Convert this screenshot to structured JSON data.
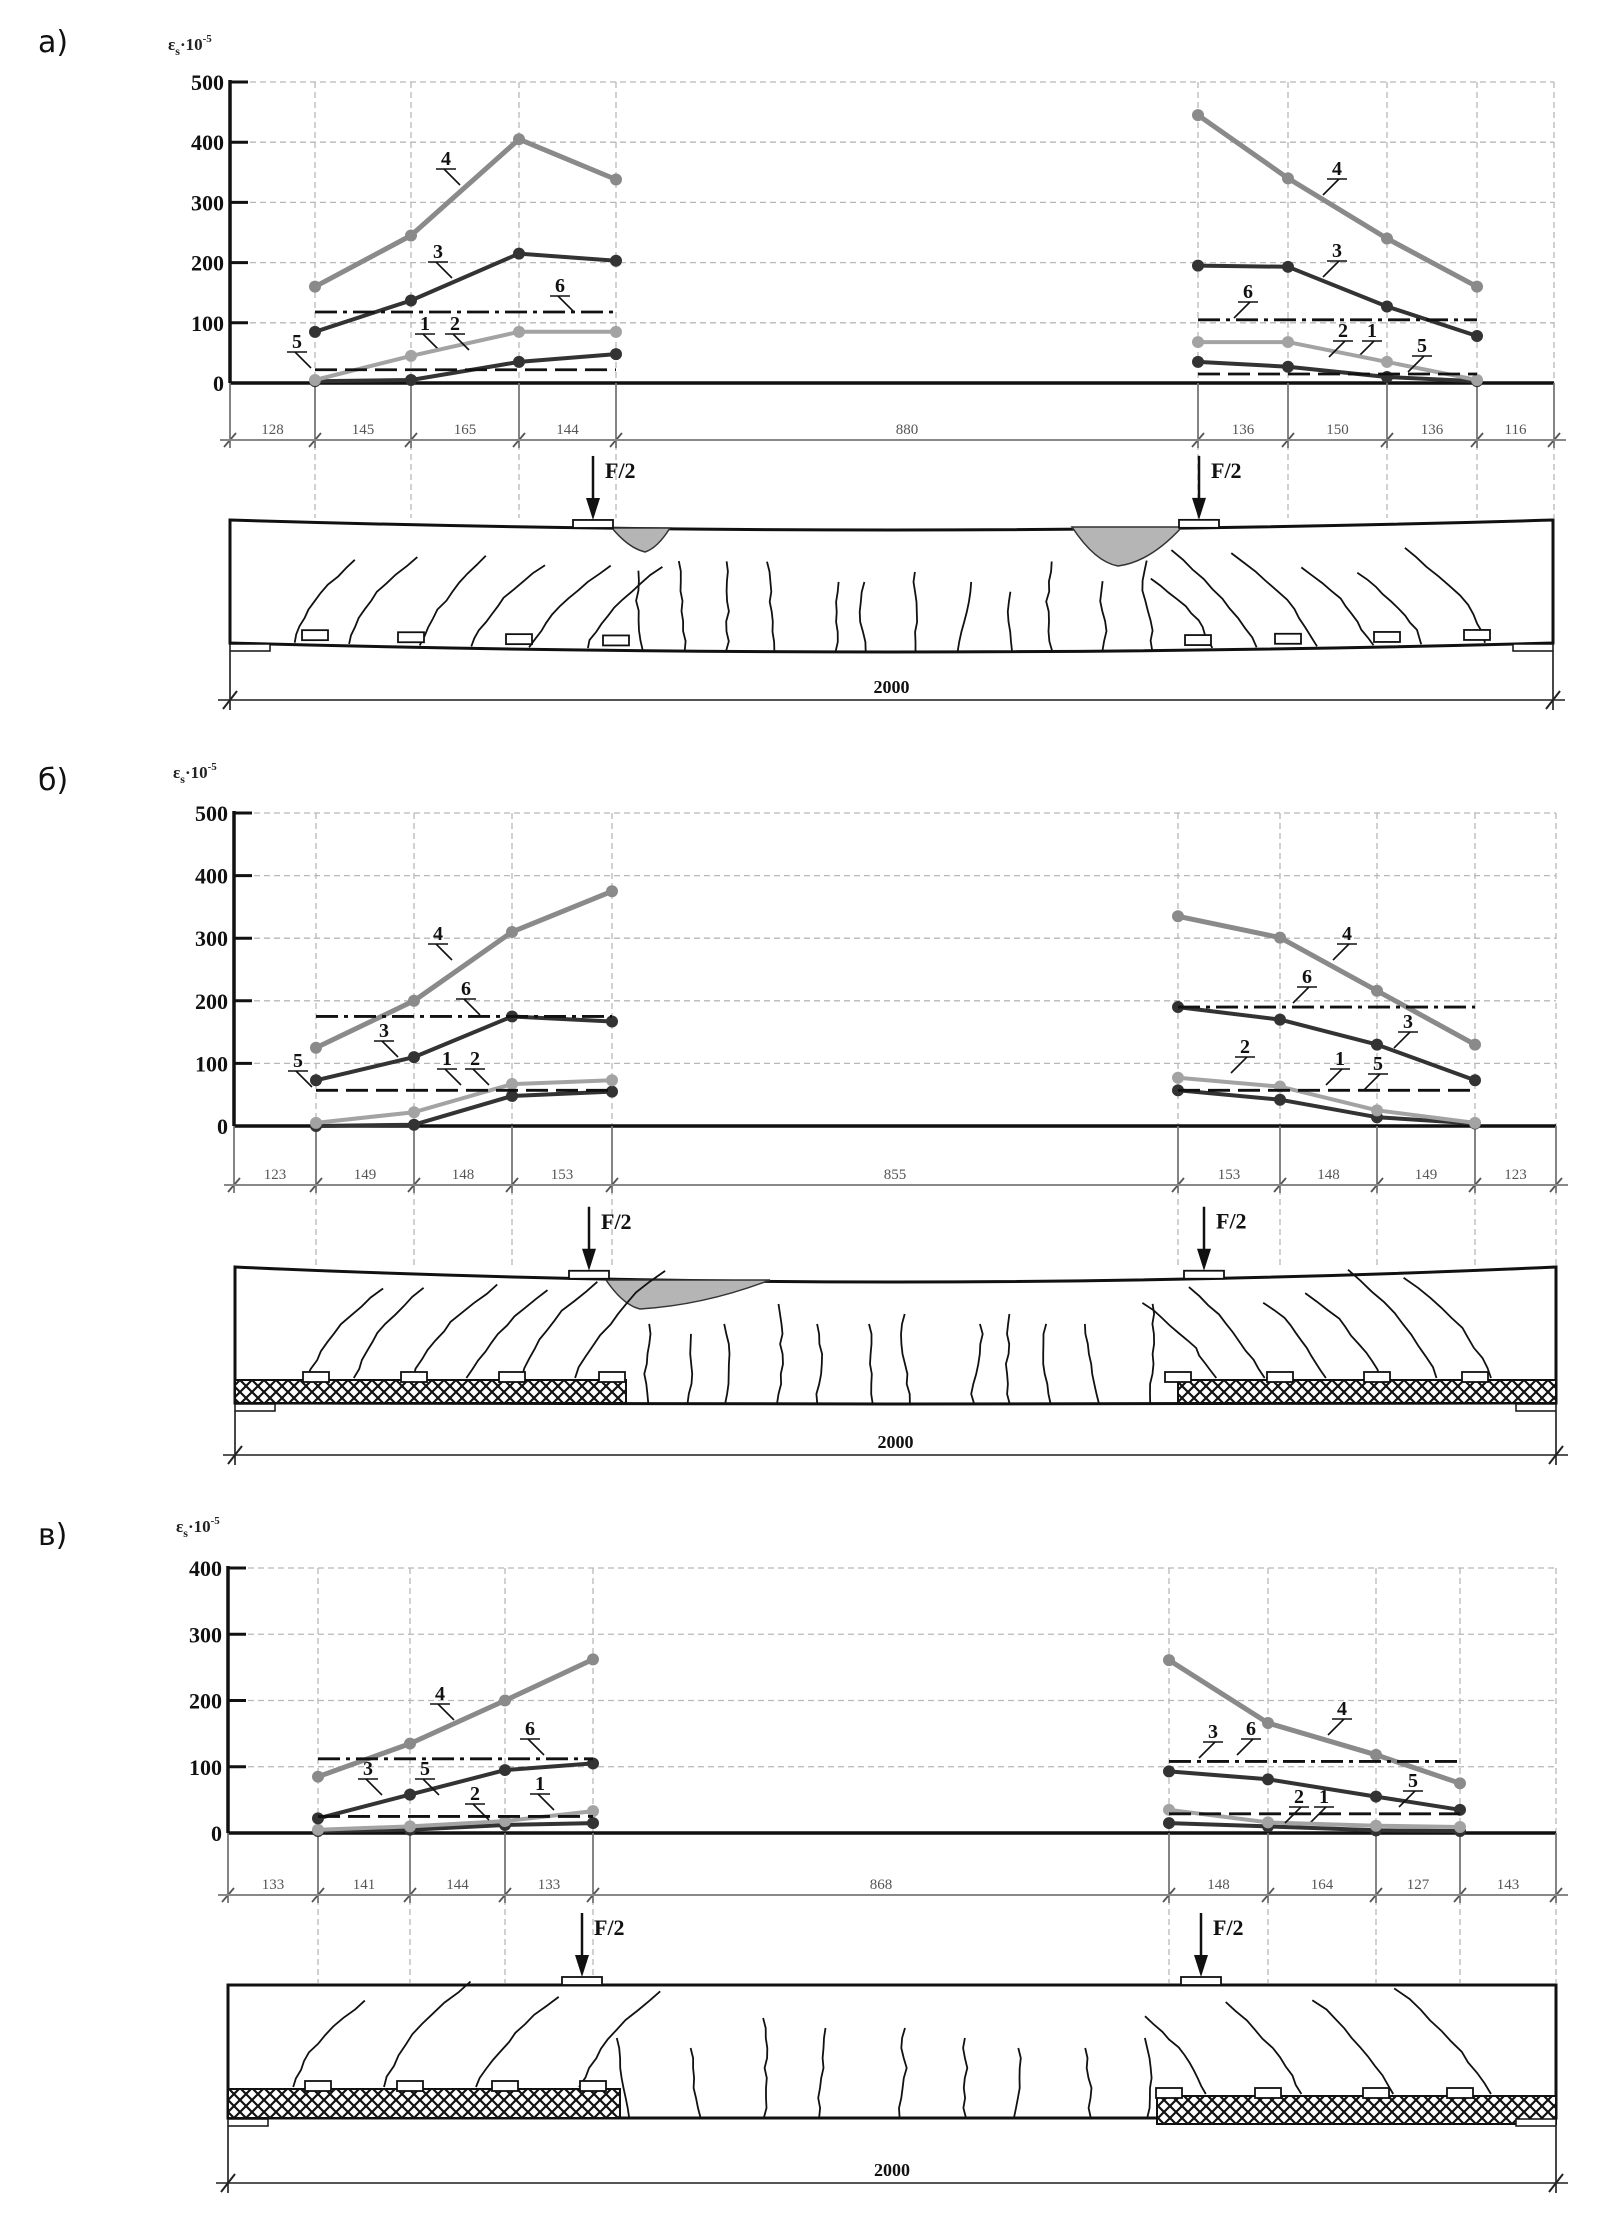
{
  "chart_data": [
    {
      "type": "line",
      "panel_label": "а)",
      "ylabel": {
        "symbol": "ε",
        "sub": "s",
        "factor": "·10",
        "exp": "-5"
      },
      "ylim": [
        0,
        500
      ],
      "yticks": [
        "0",
        "100",
        "200",
        "300",
        "400",
        "500"
      ],
      "grid": true,
      "dimensions": [
        "128",
        "145",
        "165",
        "144",
        "880",
        "136",
        "150",
        "136",
        "116"
      ],
      "span": "2000",
      "load_label": "F/2",
      "strengthened": false,
      "series": [
        {
          "name": "1",
          "style": "solid-dark",
          "left": [
            3,
            5,
            35,
            48
          ],
          "right": [
            35,
            27,
            10,
            3
          ]
        },
        {
          "name": "2",
          "style": "solid-light",
          "left": [
            5,
            45,
            85,
            85
          ],
          "right": [
            68,
            68,
            35,
            5
          ]
        },
        {
          "name": "3",
          "style": "solid-dark",
          "left": [
            85,
            137,
            215,
            203
          ],
          "right": [
            195,
            193,
            127,
            78
          ]
        },
        {
          "name": "4",
          "style": "solid-gray",
          "left": [
            160,
            245,
            405,
            338
          ],
          "right": [
            445,
            340,
            240,
            160
          ]
        },
        {
          "name": "5",
          "style": "dashed",
          "left_level": 22,
          "right_level": 15
        },
        {
          "name": "6",
          "style": "dash-dot",
          "left_level": 118,
          "right_level": 105
        }
      ]
    },
    {
      "type": "line",
      "panel_label": "б)",
      "ylabel": {
        "symbol": "ε",
        "sub": "s",
        "factor": "·10",
        "exp": "-5"
      },
      "ylim": [
        0,
        500
      ],
      "yticks": [
        "0",
        "100",
        "200",
        "300",
        "400",
        "500"
      ],
      "grid": true,
      "dimensions": [
        "123",
        "149",
        "148",
        "153",
        "855",
        "153",
        "148",
        "149",
        "123"
      ],
      "span": "2000",
      "load_label": "F/2",
      "strengthened": true,
      "series": [
        {
          "name": "1",
          "style": "solid-dark",
          "left": [
            0,
            2,
            48,
            55
          ],
          "right": [
            57,
            42,
            14,
            4
          ]
        },
        {
          "name": "2",
          "style": "solid-light",
          "left": [
            5,
            22,
            67,
            73
          ],
          "right": [
            77,
            63,
            25,
            5
          ]
        },
        {
          "name": "3",
          "style": "solid-dark",
          "left": [
            73,
            110,
            175,
            167
          ],
          "right": [
            190,
            170,
            130,
            73
          ]
        },
        {
          "name": "4",
          "style": "solid-gray",
          "left": [
            125,
            200,
            310,
            375
          ],
          "right": [
            335,
            301,
            216,
            130
          ]
        },
        {
          "name": "5",
          "style": "dashed",
          "left_level": 57,
          "right_level": 57
        },
        {
          "name": "6",
          "style": "dash-dot",
          "left_level": 175,
          "right_level": 190
        }
      ]
    },
    {
      "type": "line",
      "panel_label": "в)",
      "ylabel": {
        "symbol": "ε",
        "sub": "s",
        "factor": "·10",
        "exp": "-5"
      },
      "ylim": [
        0,
        400
      ],
      "yticks": [
        "0",
        "100",
        "200",
        "300",
        "400"
      ],
      "grid": true,
      "dimensions": [
        "133",
        "141",
        "144",
        "133",
        "868",
        "148",
        "164",
        "127",
        "143"
      ],
      "span": "2000",
      "load_label": "F/2",
      "strengthened": true,
      "series": [
        {
          "name": "1",
          "style": "solid-dark",
          "left": [
            3,
            5,
            12,
            15
          ],
          "right": [
            15,
            10,
            4,
            3
          ]
        },
        {
          "name": "2",
          "style": "solid-light",
          "left": [
            5,
            10,
            18,
            33
          ],
          "right": [
            35,
            16,
            11,
            9
          ]
        },
        {
          "name": "3",
          "style": "solid-dark",
          "left": [
            22,
            58,
            95,
            105
          ],
          "right": [
            93,
            81,
            55,
            35
          ]
        },
        {
          "name": "4",
          "style": "solid-gray",
          "left": [
            85,
            135,
            200,
            262
          ],
          "right": [
            261,
            166,
            118,
            75
          ]
        },
        {
          "name": "5",
          "style": "dashed",
          "left_level": 25,
          "right_level": 29
        },
        {
          "name": "6",
          "style": "dash-dot",
          "left_level": 112,
          "right_level": 108
        }
      ]
    }
  ],
  "colors": {
    "dark": "#333333",
    "light": "#a3a3a3",
    "gray": "#8a8a8a",
    "grid": "#b8b8b8",
    "crush": "#b5b5b5"
  }
}
